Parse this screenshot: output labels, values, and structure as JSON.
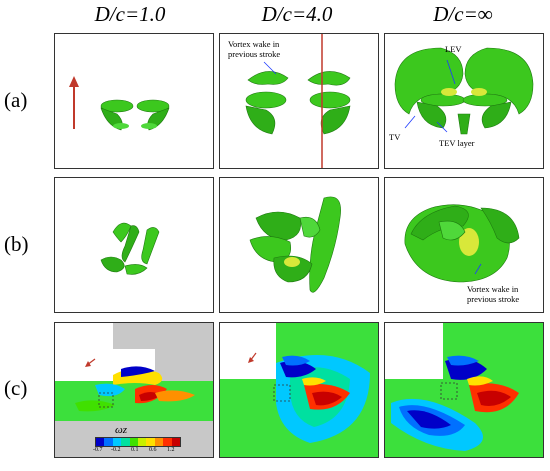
{
  "columns": [
    {
      "label": "D/c=1.0"
    },
    {
      "label": "D/c=4.0"
    },
    {
      "label": "D/c=∞"
    }
  ],
  "rows": [
    {
      "label": "(a)"
    },
    {
      "label": "(b)"
    },
    {
      "label": "(c)"
    }
  ],
  "annotations": {
    "vortex_wake_a_line1": "Vortex wake in",
    "vortex_wake_a_line2": "previous stroke",
    "lev": "LEV",
    "tv": "TV",
    "tev_layer": "TEV layer",
    "vortex_wake_b_line1": "Vortex wake in",
    "vortex_wake_b_line2": "previous stroke"
  },
  "colorbar": {
    "symbol": "ωz",
    "ticks": [
      "-0.7",
      "-0.2",
      "0.1",
      "0.6",
      "1.2"
    ],
    "colors": [
      "#0000c8",
      "#0070ff",
      "#00c8ff",
      "#00e0a0",
      "#40e000",
      "#c8f000",
      "#ffe000",
      "#ff9000",
      "#ff3000",
      "#c80000"
    ]
  },
  "colors": {
    "iso_surface": "#3cc81e",
    "iso_dark": "#1e7a10",
    "iso_highlight": "#d8e83a",
    "arrow_red": "#c0392b",
    "field_green": "#3ce03c",
    "field_gray": "#c8c8c8"
  }
}
